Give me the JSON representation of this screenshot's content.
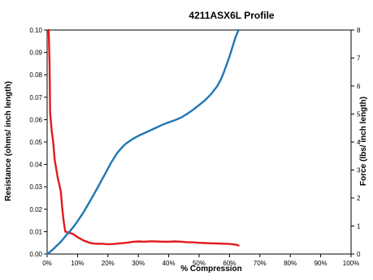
{
  "chart_data": {
    "type": "line",
    "title": "4211ASX6L Profile",
    "xlabel": "% Compression",
    "ylabel_left": "Resistance (ohms/ inch length)",
    "ylabel_right": "Force (lbs/ inch length)",
    "x_ticks": [
      "0%",
      "10%",
      "20%",
      "30%",
      "40%",
      "50%",
      "60%",
      "70%",
      "80%",
      "90%",
      "100%"
    ],
    "y_left_ticks": [
      "0.00",
      "0.01",
      "0.02",
      "0.03",
      "0.04",
      "0.05",
      "0.06",
      "0.07",
      "0.08",
      "0.09",
      "0.10"
    ],
    "y_right_ticks": [
      "0",
      "1",
      "2",
      "3",
      "4",
      "5",
      "6",
      "7",
      "8"
    ],
    "xlim": [
      0,
      100
    ],
    "ylim_left": [
      0,
      0.1
    ],
    "ylim_right": [
      0,
      8
    ],
    "grid": false,
    "series": [
      {
        "axis": "left",
        "color": "#e31a1c",
        "x": [
          0.5,
          0.8,
          1,
          1.5,
          2,
          2.5,
          3,
          3.5,
          4,
          4.5,
          5,
          5.5,
          6,
          7,
          8,
          9,
          10,
          11,
          12,
          13,
          14,
          15,
          16,
          18,
          20,
          22,
          24,
          26,
          28,
          30,
          32,
          34,
          36,
          38,
          40,
          42,
          44,
          46,
          48,
          50,
          52,
          54,
          56,
          58,
          60,
          62,
          63
        ],
        "y": [
          0.1,
          0.085,
          0.063,
          0.055,
          0.05,
          0.042,
          0.038,
          0.034,
          0.031,
          0.028,
          0.02,
          0.014,
          0.01,
          0.0095,
          0.0092,
          0.0085,
          0.0075,
          0.0068,
          0.006,
          0.0055,
          0.005,
          0.0048,
          0.0046,
          0.0046,
          0.0044,
          0.0045,
          0.0048,
          0.005,
          0.0054,
          0.0056,
          0.0055,
          0.0057,
          0.0056,
          0.0055,
          0.0055,
          0.0056,
          0.0055,
          0.0053,
          0.0052,
          0.005,
          0.0049,
          0.0048,
          0.0047,
          0.0046,
          0.0045,
          0.0042,
          0.0038
        ]
      },
      {
        "axis": "right",
        "color": "#1f77b4",
        "x": [
          0,
          1,
          2,
          3,
          4,
          5,
          6,
          7,
          8,
          9,
          10,
          11,
          12,
          13,
          14,
          15,
          16,
          17,
          18,
          19,
          20,
          21,
          22,
          23,
          24,
          25,
          26,
          28,
          30,
          32,
          34,
          36,
          38,
          40,
          42,
          44,
          46,
          48,
          50,
          52,
          54,
          56,
          57,
          58,
          59,
          60,
          61,
          62,
          63
        ],
        "y": [
          0,
          0.08,
          0.17,
          0.28,
          0.38,
          0.5,
          0.63,
          0.76,
          0.88,
          1.02,
          1.17,
          1.33,
          1.5,
          1.68,
          1.87,
          2.06,
          2.25,
          2.45,
          2.65,
          2.85,
          3.05,
          3.25,
          3.43,
          3.6,
          3.73,
          3.85,
          3.95,
          4.1,
          4.22,
          4.32,
          4.42,
          4.52,
          4.62,
          4.7,
          4.78,
          4.87,
          5.0,
          5.15,
          5.32,
          5.5,
          5.72,
          6.0,
          6.2,
          6.45,
          6.75,
          7.05,
          7.4,
          7.75,
          8.0
        ]
      }
    ]
  }
}
